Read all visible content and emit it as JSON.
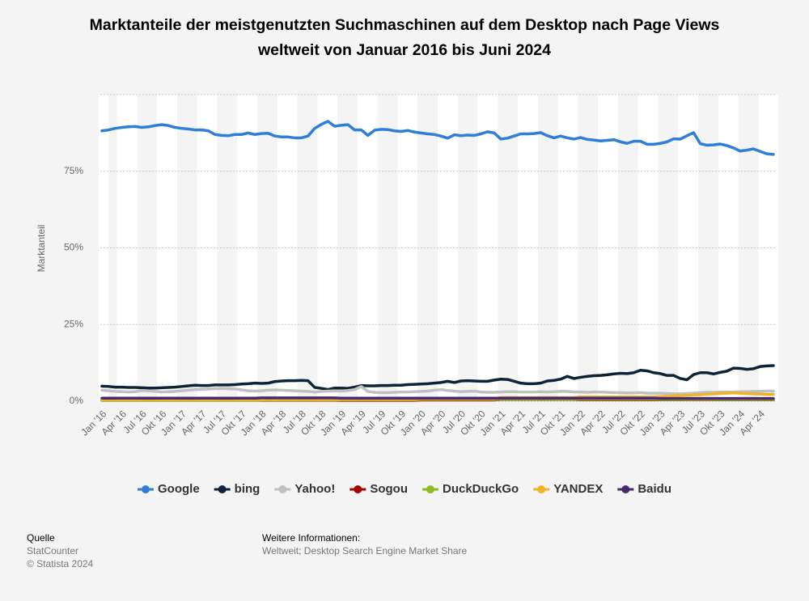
{
  "chart_data": {
    "type": "line",
    "title": "Marktanteile der meistgenutzten Suchmaschinen auf dem Desktop nach Page Views weltweit von Januar 2016 bis Juni 2024",
    "y_label": "Marktanteil",
    "categories": [
      "Jan '16",
      null,
      null,
      "Apr '16",
      null,
      null,
      "Jul '16",
      null,
      null,
      "Okt '16",
      null,
      null,
      "Jan '17",
      null,
      null,
      "Apr '17",
      null,
      null,
      "Jul '17",
      null,
      null,
      "Okt '17",
      null,
      null,
      "Jan '18",
      null,
      null,
      "Apr '18",
      null,
      null,
      "Jul '18",
      null,
      null,
      "Okt '18",
      null,
      null,
      "Jan '19",
      null,
      null,
      "Apr '19",
      null,
      null,
      "Jul '19",
      null,
      null,
      "Okt '19",
      null,
      null,
      "Jan '20",
      null,
      null,
      "Apr '20",
      null,
      null,
      "Jul '20",
      null,
      null,
      "Okt '20",
      null,
      null,
      "Jan '21",
      null,
      null,
      "Apr '21",
      null,
      null,
      "Jul '21",
      null,
      null,
      "Okt '21",
      null,
      null,
      "Jan '22",
      null,
      null,
      "Apr '22",
      null,
      null,
      "Jul '22",
      null,
      null,
      "Okt '22",
      null,
      null,
      "Jan '23",
      null,
      null,
      "Apr '23",
      null,
      null,
      "Jul '23",
      null,
      null,
      "Okt '23",
      null,
      null,
      "Jan '24",
      null,
      null,
      "Apr '24",
      null,
      null
    ],
    "series": [
      {
        "name": "Google",
        "color": "#2f7ed8",
        "values": [
          88.2,
          88.5,
          89,
          89.3,
          89.5,
          89.6,
          89.3,
          89.5,
          89.9,
          90.2,
          89.9,
          89.3,
          89,
          88.8,
          88.5,
          88.5,
          88.2,
          87,
          86.7,
          86.6,
          87,
          87,
          87.5,
          87,
          87.3,
          87.4,
          86.5,
          86.2,
          86.2,
          85.9,
          85.9,
          86.5,
          89,
          90.3,
          91.3,
          89.7,
          90,
          90.2,
          88.5,
          88.5,
          86.7,
          88.4,
          88.7,
          88.6,
          88.2,
          88,
          88.3,
          87.8,
          87.5,
          87.2,
          87,
          86.5,
          85.8,
          86.9,
          86.6,
          86.8,
          86.7,
          87.2,
          87.9,
          87.5,
          85.5,
          85.8,
          86.5,
          87.2,
          87.2,
          87.3,
          87.6,
          86.6,
          85.9,
          86.5,
          85.9,
          85.5,
          86,
          85.4,
          85.2,
          84.9,
          85.1,
          85.3,
          84.6,
          84.1,
          84.8,
          84.8,
          83.8,
          83.8,
          84.1,
          84.6,
          85.6,
          85.5,
          86.6,
          87.6,
          84,
          83.5,
          83.6,
          83.9,
          83.4,
          82.6,
          81.6,
          81.9,
          82.3,
          81.5,
          80.7,
          80.5
        ]
      },
      {
        "name": "bing",
        "color": "#0d233a",
        "values": [
          4.9,
          4.8,
          4.6,
          4.6,
          4.5,
          4.5,
          4.4,
          4.3,
          4.3,
          4.4,
          4.5,
          4.6,
          4.8,
          5,
          5.2,
          5.1,
          5.1,
          5.3,
          5.3,
          5.3,
          5.4,
          5.6,
          5.7,
          5.9,
          5.8,
          5.9,
          6.4,
          6.6,
          6.7,
          6.7,
          6.8,
          6.7,
          4.5,
          4.2,
          3.8,
          4.3,
          4.3,
          4.2,
          4.6,
          5.1,
          5,
          5,
          5.1,
          5.1,
          5.2,
          5.2,
          5.4,
          5.5,
          5.6,
          5.7,
          5.9,
          6.1,
          6.5,
          6.1,
          6.6,
          6.7,
          6.6,
          6.5,
          6.5,
          6.9,
          7.2,
          7.1,
          6.5,
          5.9,
          5.7,
          5.7,
          5.9,
          6.6,
          6.8,
          7.2,
          8.1,
          7.4,
          7.8,
          8.1,
          8.3,
          8.4,
          8.6,
          8.9,
          9.1,
          9,
          9.3,
          10.1,
          9.9,
          9.3,
          9,
          8.4,
          8.4,
          7.4,
          7,
          8.7,
          9.3,
          9.3,
          8.9,
          9.4,
          9.8,
          10.8,
          10.7,
          10.4,
          10.6,
          11.3,
          11.5,
          11.6
        ]
      },
      {
        "name": "Yahoo!",
        "color": "#c0c0c0",
        "values": [
          3.6,
          3.4,
          3.2,
          3.1,
          3.0,
          3.1,
          3.5,
          3.4,
          3.2,
          3.0,
          3.1,
          3.2,
          3.4,
          3.6,
          3.8,
          3.9,
          4.0,
          4.1,
          4.2,
          4.1,
          4.0,
          3.7,
          3.4,
          3.3,
          3.4,
          3.6,
          3.7,
          3.6,
          3.5,
          3.4,
          3.3,
          3.2,
          3.0,
          3.2,
          3.3,
          3.4,
          3.3,
          3.5,
          3.8,
          4.8,
          3.2,
          2.9,
          2.8,
          2.8,
          2.9,
          3.0,
          3.0,
          3.1,
          3.2,
          3.3,
          3.6,
          3.8,
          3.5,
          3.3,
          3.1,
          3.2,
          3.3,
          3.0,
          2.9,
          2.9,
          3.0,
          3.1,
          3.1,
          3.0,
          3.0,
          3.0,
          3.1,
          3.0,
          3.1,
          3.2,
          3.2,
          3.0,
          3.0,
          2.9,
          3.0,
          3.0,
          2.9,
          2.8,
          2.8,
          2.7,
          2.7,
          2.8,
          2.6,
          2.6,
          2.6,
          2.5,
          2.4,
          2.4,
          2.5,
          2.6,
          2.8,
          2.9,
          2.9,
          3.0,
          3.0,
          3.0,
          3.1,
          3.1,
          3.2,
          3.2,
          3.3,
          3.3
        ]
      },
      {
        "name": "Sogou",
        "color": "#a30000",
        "values": [
          0.3,
          0.3,
          0.3,
          0.3,
          0.3,
          0.3,
          0.3,
          0.3,
          0.3,
          0.3,
          0.3,
          0.3,
          0.3,
          0.3,
          0.3,
          0.3,
          0.3,
          0.3,
          0.3,
          0.3,
          0.3,
          0.3,
          0.3,
          0.3,
          0.3,
          0.3,
          0.3,
          0.3,
          0.3,
          0.3,
          0.3,
          0.3,
          0.3,
          0.3,
          0.3,
          0.3,
          0.3,
          0.3,
          0.3,
          0.3,
          0.3,
          0.3,
          0.3,
          0.3,
          0.3,
          0.3,
          0.3,
          0.3,
          0.4,
          0.4,
          0.4,
          0.4,
          0.4,
          0.4,
          0.4,
          0.4,
          0.4,
          0.4,
          0.4,
          0.4,
          0.6,
          0.6,
          0.6,
          0.6,
          0.6,
          0.6,
          0.6,
          0.6,
          0.6,
          0.6,
          0.6,
          0.6,
          0.5,
          0.5,
          0.5,
          0.5,
          0.5,
          0.5,
          0.5,
          0.5,
          0.5,
          0.5,
          0.5,
          0.5,
          0.5,
          0.5,
          0.5,
          0.5,
          0.5,
          0.5,
          0.5,
          0.5,
          0.5,
          0.5,
          0.5,
          0.5,
          0.5,
          0.5,
          0.5,
          0.5,
          0.5,
          0.5
        ]
      },
      {
        "name": "DuckDuckGo",
        "color": "#8bbc21",
        "values": [
          0.3,
          0.3,
          0.3,
          0.3,
          0.3,
          0.3,
          0.3,
          0.3,
          0.3,
          0.3,
          0.3,
          0.3,
          0.3,
          0.3,
          0.3,
          0.3,
          0.3,
          0.3,
          0.3,
          0.3,
          0.3,
          0.3,
          0.3,
          0.3,
          0.4,
          0.4,
          0.4,
          0.4,
          0.4,
          0.4,
          0.4,
          0.4,
          0.4,
          0.4,
          0.4,
          0.4,
          0.5,
          0.5,
          0.5,
          0.5,
          0.5,
          0.5,
          0.5,
          0.5,
          0.5,
          0.5,
          0.5,
          0.5,
          0.6,
          0.6,
          0.6,
          0.6,
          0.6,
          0.6,
          0.6,
          0.6,
          0.6,
          0.6,
          0.6,
          0.6,
          0.7,
          0.7,
          0.7,
          0.7,
          0.7,
          0.7,
          0.7,
          0.7,
          0.7,
          0.7,
          0.7,
          0.7,
          0.7,
          0.7,
          0.7,
          0.7,
          0.7,
          0.7,
          0.7,
          0.7,
          0.7,
          0.7,
          0.7,
          0.7,
          0.6,
          0.6,
          0.6,
          0.6,
          0.6,
          0.6,
          0.6,
          0.6,
          0.6,
          0.6,
          0.6,
          0.6,
          0.6,
          0.6,
          0.6,
          0.6,
          0.6,
          0.6
        ]
      },
      {
        "name": "YANDEX",
        "color": "#f0b323",
        "values": [
          0.5,
          0.5,
          0.5,
          0.5,
          0.5,
          0.5,
          0.5,
          0.5,
          0.5,
          0.5,
          0.5,
          0.5,
          0.5,
          0.5,
          0.5,
          0.5,
          0.5,
          0.5,
          0.5,
          0.5,
          0.5,
          0.5,
          0.5,
          0.5,
          0.5,
          0.5,
          0.5,
          0.5,
          0.5,
          0.5,
          0.5,
          0.5,
          0.5,
          0.5,
          0.5,
          0.5,
          0.6,
          0.6,
          0.6,
          0.6,
          0.6,
          0.6,
          0.6,
          0.6,
          0.6,
          0.6,
          0.6,
          0.6,
          0.8,
          0.8,
          0.8,
          0.8,
          0.8,
          0.8,
          0.8,
          0.8,
          0.8,
          0.8,
          0.8,
          0.8,
          1.2,
          1.2,
          1.2,
          1.2,
          1.2,
          1.2,
          1.2,
          1.2,
          1.2,
          1.2,
          1.2,
          1.2,
          1.4,
          1.4,
          1.4,
          1.4,
          1.4,
          1.4,
          1.4,
          1.4,
          1.4,
          1.4,
          1.4,
          1.4,
          1.5,
          1.6,
          1.7,
          1.8,
          1.9,
          2.0,
          2.1,
          2.3,
          2.4,
          2.5,
          2.6,
          2.7,
          2.6,
          2.5,
          2.4,
          2.3,
          2.2,
          2.2
        ]
      },
      {
        "name": "Baidu",
        "color": "#492970",
        "values": [
          1.0,
          1.0,
          1.0,
          1.0,
          1.0,
          1.0,
          1.0,
          1.0,
          1.0,
          1.0,
          1.0,
          1.0,
          1.0,
          1.0,
          1.0,
          1.0,
          1.0,
          1.0,
          1.0,
          1.0,
          1.0,
          1.0,
          1.0,
          1.0,
          1.1,
          1.1,
          1.1,
          1.1,
          1.1,
          1.1,
          1.1,
          1.1,
          1.1,
          1.1,
          1.1,
          1.1,
          1.0,
          1.0,
          1.0,
          1.0,
          1.0,
          1.0,
          1.0,
          1.0,
          1.0,
          1.0,
          1.0,
          1.0,
          1.0,
          1.0,
          1.0,
          1.0,
          1.0,
          1.0,
          1.0,
          1.0,
          1.0,
          1.0,
          1.0,
          1.0,
          1.0,
          1.0,
          1.0,
          1.0,
          1.0,
          1.0,
          1.0,
          1.0,
          1.0,
          1.0,
          1.0,
          1.0,
          1.0,
          1.0,
          1.0,
          1.0,
          1.0,
          1.0,
          1.0,
          1.0,
          1.0,
          1.0,
          1.0,
          1.0,
          0.9,
          0.9,
          0.9,
          0.9,
          0.9,
          0.9,
          0.9,
          0.9,
          0.9,
          0.9,
          0.9,
          0.9,
          0.9,
          0.9,
          0.9,
          0.9,
          0.9,
          0.9
        ]
      }
    ],
    "ylim": [
      0,
      100
    ],
    "yticks": [
      {
        "value": 0,
        "label": "0%"
      },
      {
        "value": 25,
        "label": "25%"
      },
      {
        "value": 50,
        "label": "50%"
      },
      {
        "value": 75,
        "label": "75%"
      }
    ],
    "grid": true,
    "legend": "bottom"
  },
  "footer": {
    "source_title": "Quelle",
    "source": "StatCounter",
    "copyright": "© Statista 2024",
    "info_title": "Weitere Informationen:",
    "info": "Weltweit; Desktop Search Engine Market Share"
  }
}
